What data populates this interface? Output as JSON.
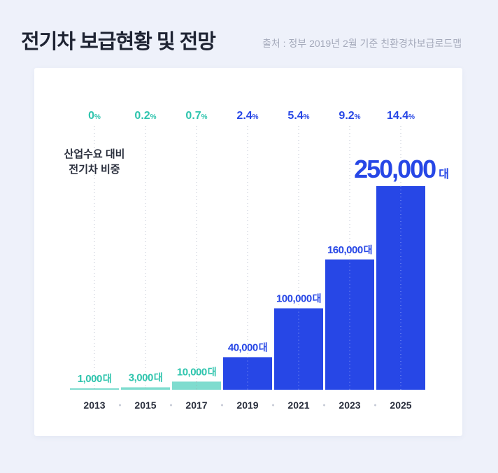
{
  "header": {
    "title": "전기차 보급현황 및 전망",
    "source": "출처 : 정부 2019년 2월 기준 친환경차보급로드맵"
  },
  "chart_data": {
    "type": "bar",
    "title": "전기차 보급현황 및 전망",
    "ylabel": "산업수요 대비 전기차 비중",
    "ylabel_lines": [
      "산업수요 대비",
      "전기차 비중"
    ],
    "categories": [
      "2013",
      "2015",
      "2017",
      "2019",
      "2021",
      "2023",
      "2025"
    ],
    "values": [
      1000,
      3000,
      10000,
      40000,
      100000,
      160000,
      250000
    ],
    "value_labels": [
      "1,000",
      "3,000",
      "10,000",
      "40,000",
      "100,000",
      "160,000",
      "250,000"
    ],
    "unit": "대",
    "share_percent": [
      0,
      0.2,
      0.7,
      2.4,
      5.4,
      9.2,
      14.4
    ],
    "share_labels": [
      "0",
      "0.2",
      "0.7",
      "2.4",
      "5.4",
      "9.2",
      "14.4"
    ],
    "percent_sign": "%",
    "ylim": [
      0,
      250000
    ],
    "colors": {
      "teal_bar": "#7fdccf",
      "teal_text": "#2ec4ad",
      "blue": "#2747e6",
      "axis_text": "#2a2f3d"
    },
    "teal_years": [
      "2013",
      "2015",
      "2017"
    ]
  }
}
